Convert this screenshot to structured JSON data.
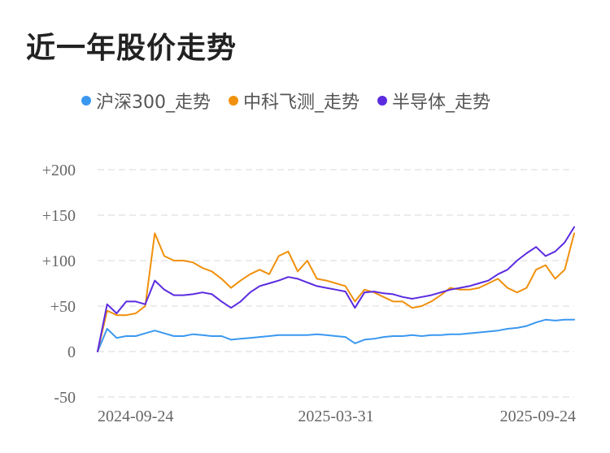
{
  "title": "近一年股价走势",
  "chart_data": {
    "type": "line",
    "title": "近一年股价走势",
    "xlabel": "",
    "ylabel": "",
    "ylim": [
      -50,
      200
    ],
    "yticks": [
      "+200",
      "+150",
      "+100",
      "+50",
      "0",
      "-50"
    ],
    "ytick_values": [
      200,
      150,
      100,
      50,
      0,
      -50
    ],
    "xticks": [
      "2024-09-24",
      "2025-03-31",
      "2025-09-24"
    ],
    "grid": true,
    "legend_position": "top",
    "x": [
      0,
      2,
      4,
      6,
      8,
      10,
      12,
      14,
      16,
      18,
      20,
      22,
      24,
      26,
      28,
      30,
      32,
      34,
      36,
      38,
      40,
      42,
      44,
      46,
      48,
      50,
      52,
      54,
      56,
      58,
      60,
      62,
      64,
      66,
      68,
      70,
      72,
      74,
      76,
      78,
      80,
      82,
      84,
      86,
      88,
      90,
      92,
      94,
      96,
      98,
      100
    ],
    "series": [
      {
        "name": "沪深300_走势",
        "color": "#3b98f0",
        "values": [
          0,
          25,
          15,
          17,
          17,
          20,
          23,
          20,
          17,
          17,
          19,
          18,
          17,
          17,
          13,
          14,
          15,
          16,
          17,
          18,
          18,
          18,
          18,
          19,
          18,
          17,
          16,
          9,
          13,
          14,
          16,
          17,
          17,
          18,
          17,
          18,
          18,
          19,
          19,
          20,
          21,
          22,
          23,
          25,
          26,
          28,
          32,
          35,
          34,
          35,
          35
        ]
      },
      {
        "name": "中科飞测_走势",
        "color": "#f0900c",
        "values": [
          0,
          45,
          40,
          40,
          42,
          50,
          130,
          105,
          100,
          100,
          98,
          92,
          88,
          80,
          70,
          78,
          85,
          90,
          85,
          105,
          110,
          88,
          100,
          80,
          78,
          75,
          72,
          55,
          68,
          65,
          60,
          55,
          55,
          48,
          50,
          55,
          62,
          70,
          68,
          68,
          70,
          75,
          80,
          70,
          65,
          70,
          90,
          95,
          80,
          90,
          130
        ]
      },
      {
        "name": "半导体_走势",
        "color": "#5b2be0",
        "values": [
          0,
          52,
          42,
          55,
          55,
          52,
          78,
          68,
          62,
          62,
          63,
          65,
          63,
          55,
          48,
          55,
          65,
          72,
          75,
          78,
          82,
          80,
          76,
          72,
          70,
          68,
          66,
          48,
          65,
          66,
          64,
          63,
          60,
          58,
          60,
          62,
          65,
          68,
          70,
          72,
          75,
          78,
          85,
          90,
          100,
          108,
          115,
          105,
          110,
          120,
          137
        ]
      }
    ]
  }
}
